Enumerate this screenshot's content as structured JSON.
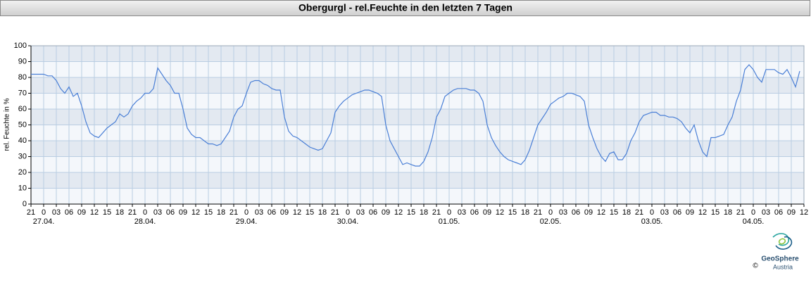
{
  "chart_data": {
    "type": "line",
    "title": "Obergurgl - rel.Feuchte in den letzten 7 Tagen",
    "y_label": "rel. Feuchte in %",
    "color": "#4a7fd6",
    "grid": true,
    "ylim": [
      0,
      100
    ],
    "yticks": [
      0,
      10,
      20,
      30,
      40,
      50,
      60,
      70,
      80,
      90,
      100
    ],
    "xlim": [
      0,
      183
    ],
    "xticks": [
      {
        "value": 0,
        "label": "21"
      },
      {
        "value": 3,
        "label": "0"
      },
      {
        "value": 6,
        "label": "03"
      },
      {
        "value": 9,
        "label": "06"
      },
      {
        "value": 12,
        "label": "09"
      },
      {
        "value": 15,
        "label": "12"
      },
      {
        "value": 18,
        "label": "15"
      },
      {
        "value": 21,
        "label": "18"
      },
      {
        "value": 24,
        "label": "21"
      },
      {
        "value": 27,
        "label": "0"
      },
      {
        "value": 30,
        "label": "03"
      },
      {
        "value": 33,
        "label": "06"
      },
      {
        "value": 36,
        "label": "09"
      },
      {
        "value": 39,
        "label": "12"
      },
      {
        "value": 42,
        "label": "15"
      },
      {
        "value": 45,
        "label": "18"
      },
      {
        "value": 48,
        "label": "21"
      },
      {
        "value": 51,
        "label": "0"
      },
      {
        "value": 54,
        "label": "03"
      },
      {
        "value": 57,
        "label": "06"
      },
      {
        "value": 60,
        "label": "09"
      },
      {
        "value": 63,
        "label": "12"
      },
      {
        "value": 66,
        "label": "15"
      },
      {
        "value": 69,
        "label": "18"
      },
      {
        "value": 72,
        "label": "21"
      },
      {
        "value": 75,
        "label": "0"
      },
      {
        "value": 78,
        "label": "03"
      },
      {
        "value": 81,
        "label": "06"
      },
      {
        "value": 84,
        "label": "09"
      },
      {
        "value": 87,
        "label": "12"
      },
      {
        "value": 90,
        "label": "15"
      },
      {
        "value": 93,
        "label": "18"
      },
      {
        "value": 96,
        "label": "21"
      },
      {
        "value": 99,
        "label": "0"
      },
      {
        "value": 102,
        "label": "03"
      },
      {
        "value": 105,
        "label": "06"
      },
      {
        "value": 108,
        "label": "09"
      },
      {
        "value": 111,
        "label": "12"
      },
      {
        "value": 114,
        "label": "15"
      },
      {
        "value": 117,
        "label": "18"
      },
      {
        "value": 120,
        "label": "21"
      },
      {
        "value": 123,
        "label": "0"
      },
      {
        "value": 126,
        "label": "03"
      },
      {
        "value": 129,
        "label": "06"
      },
      {
        "value": 132,
        "label": "09"
      },
      {
        "value": 135,
        "label": "12"
      },
      {
        "value": 138,
        "label": "15"
      },
      {
        "value": 141,
        "label": "18"
      },
      {
        "value": 144,
        "label": "21"
      },
      {
        "value": 147,
        "label": "0"
      },
      {
        "value": 150,
        "label": "03"
      },
      {
        "value": 153,
        "label": "06"
      },
      {
        "value": 156,
        "label": "09"
      },
      {
        "value": 159,
        "label": "12"
      },
      {
        "value": 162,
        "label": "15"
      },
      {
        "value": 165,
        "label": "18"
      },
      {
        "value": 168,
        "label": "21"
      },
      {
        "value": 171,
        "label": "0"
      },
      {
        "value": 174,
        "label": "03"
      },
      {
        "value": 177,
        "label": "06"
      },
      {
        "value": 180,
        "label": "09"
      },
      {
        "value": 183,
        "label": "12"
      }
    ],
    "date_labels": [
      {
        "value": 3,
        "label": "27.04."
      },
      {
        "value": 27,
        "label": "28.04."
      },
      {
        "value": 51,
        "label": "29.04."
      },
      {
        "value": 75,
        "label": "30.04."
      },
      {
        "value": 99,
        "label": "01.05."
      },
      {
        "value": 123,
        "label": "02.05."
      },
      {
        "value": 147,
        "label": "03.05."
      },
      {
        "value": 171,
        "label": "04.05."
      }
    ],
    "x": [
      0,
      1,
      2,
      3,
      4,
      5,
      6,
      7,
      8,
      9,
      10,
      11,
      12,
      13,
      14,
      15,
      16,
      17,
      18,
      19,
      20,
      21,
      22,
      23,
      24,
      25,
      26,
      27,
      28,
      29,
      30,
      31,
      32,
      33,
      34,
      35,
      36,
      37,
      38,
      39,
      40,
      41,
      42,
      43,
      44,
      45,
      46,
      47,
      48,
      49,
      50,
      51,
      52,
      53,
      54,
      55,
      56,
      57,
      58,
      59,
      60,
      61,
      62,
      63,
      64,
      65,
      66,
      67,
      68,
      69,
      70,
      71,
      72,
      73,
      74,
      75,
      76,
      77,
      78,
      79,
      80,
      81,
      82,
      83,
      84,
      85,
      86,
      87,
      88,
      89,
      90,
      91,
      92,
      93,
      94,
      95,
      96,
      97,
      98,
      99,
      100,
      101,
      102,
      103,
      104,
      105,
      106,
      107,
      108,
      109,
      110,
      111,
      112,
      113,
      114,
      115,
      116,
      117,
      118,
      119,
      120,
      121,
      122,
      123,
      124,
      125,
      126,
      127,
      128,
      129,
      130,
      131,
      132,
      133,
      134,
      135,
      136,
      137,
      138,
      139,
      140,
      141,
      142,
      143,
      144,
      145,
      146,
      147,
      148,
      149,
      150,
      151,
      152,
      153,
      154,
      155,
      156,
      157,
      158,
      159,
      160,
      161,
      162,
      163,
      164,
      165,
      166,
      167,
      168,
      169,
      170,
      171,
      172,
      173,
      174,
      175,
      176,
      177,
      178,
      179,
      180,
      181,
      182
    ],
    "values": [
      82,
      82,
      82,
      82,
      81,
      81,
      78,
      73,
      70,
      74,
      68,
      70,
      62,
      52,
      45,
      43,
      42,
      45,
      48,
      50,
      52,
      57,
      55,
      57,
      62,
      65,
      67,
      70,
      70,
      73,
      86,
      82,
      78,
      75,
      70,
      70,
      60,
      48,
      44,
      42,
      42,
      40,
      38,
      38,
      37,
      38,
      42,
      46,
      55,
      60,
      62,
      70,
      77,
      78,
      78,
      76,
      75,
      73,
      72,
      72,
      55,
      46,
      43,
      42,
      40,
      38,
      36,
      35,
      34,
      35,
      40,
      45,
      58,
      62,
      65,
      67,
      69,
      70,
      71,
      72,
      72,
      71,
      70,
      68,
      50,
      40,
      35,
      30,
      25,
      26,
      25,
      24,
      24,
      27,
      33,
      42,
      55,
      60,
      68,
      70,
      72,
      73,
      73,
      73,
      72,
      72,
      70,
      65,
      50,
      42,
      37,
      33,
      30,
      28,
      27,
      26,
      25,
      28,
      34,
      42,
      50,
      54,
      58,
      63,
      65,
      67,
      68,
      70,
      70,
      69,
      68,
      65,
      50,
      42,
      35,
      30,
      27,
      32,
      33,
      28,
      28,
      32,
      40,
      45,
      52,
      56,
      57,
      58,
      58,
      56,
      56,
      55,
      55,
      54,
      52,
      48,
      45,
      50,
      40,
      33,
      30,
      42,
      42,
      43,
      44,
      50,
      55,
      65,
      72,
      85,
      88,
      85,
      80,
      77,
      85,
      85,
      85,
      83,
      82,
      85,
      80,
      74,
      84
    ]
  },
  "footer": {
    "brand": "GeoSphere",
    "sub": "Austria",
    "copyright": "©"
  }
}
